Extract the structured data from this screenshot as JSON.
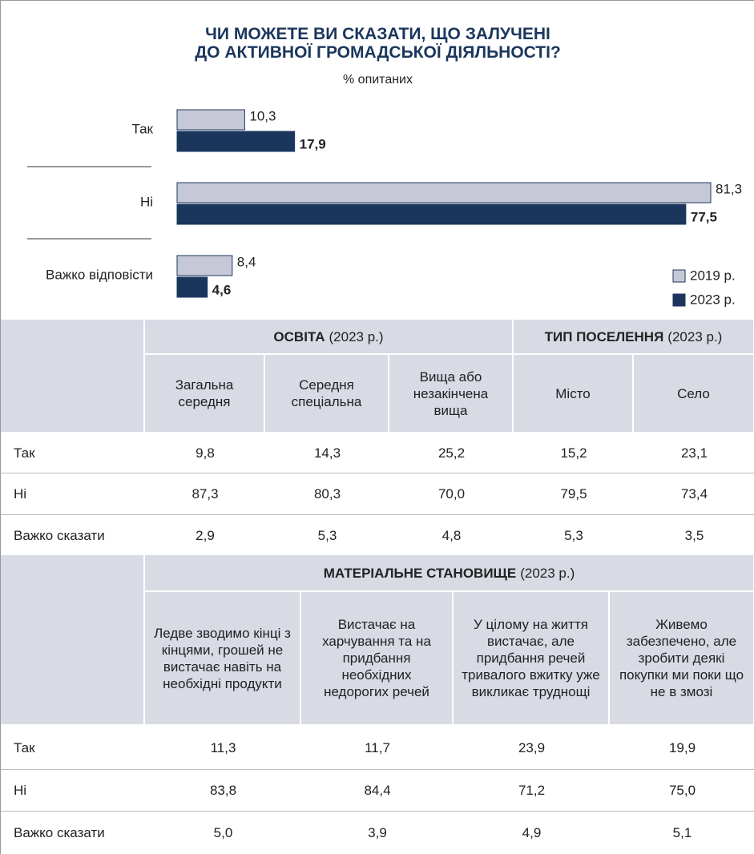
{
  "chart_data": {
    "type": "bar",
    "orientation": "horizontal",
    "title": [
      "ЧИ МОЖЕТЕ ВИ СКАЗАТИ, ЩО ЗАЛУЧЕНІ",
      "ДО АКТИВНОЇ ГРОМАДСЬКОЇ ДІЯЛЬНОСТІ?"
    ],
    "subtitle": "% опитаних",
    "categories": [
      "Так",
      "Ні",
      "Важко відповісти"
    ],
    "series": [
      {
        "name": "2019 р.",
        "color": "#c6c8d8",
        "values": [
          10.3,
          81.3,
          8.4
        ],
        "value_labels": [
          "10,3",
          "81,3",
          "8,4"
        ]
      },
      {
        "name": "2023 р.",
        "color": "#1b365d",
        "values": [
          17.9,
          77.5,
          4.6
        ],
        "value_labels": [
          "17,9",
          "77,5",
          "4,6"
        ]
      }
    ],
    "legend": "bottom-right"
  },
  "tables": [
    {
      "groups": [
        {
          "name": "ОСВІТА",
          "note": "(2023 р.)",
          "columns": [
            "Загальна середня",
            "Середня спеціальна",
            "Вища або незакінчена вища"
          ]
        },
        {
          "name": "ТИП ПОСЕЛЕННЯ",
          "note": "(2023 р.)",
          "columns": [
            "Місто",
            "Село"
          ]
        }
      ],
      "rows": [
        {
          "label": "Так",
          "values": [
            "9,8",
            "14,3",
            "25,2",
            "15,2",
            "23,1"
          ]
        },
        {
          "label": "Ні",
          "values": [
            "87,3",
            "80,3",
            "70,0",
            "79,5",
            "73,4"
          ]
        },
        {
          "label": "Важко сказати",
          "values": [
            "2,9",
            "5,3",
            "4,8",
            "5,3",
            "3,5"
          ]
        }
      ]
    },
    {
      "groups": [
        {
          "name": "МАТЕРІАЛЬНЕ СТАНОВИЩЕ",
          "note": "(2023 р.)",
          "columns": [
            "Ледве зводимо кінці з кінцями, грошей не вистачає навіть на необхідні продукти",
            "Вистачає на харчування та на придбання необхідних недорогих речей",
            "У цілому на життя вистачає, але придбання речей тривалого вжитку уже викликає труднощі",
            "Живемо забезпечено, але зробити деякі покупки ми поки що не в змозі"
          ]
        }
      ],
      "rows": [
        {
          "label": "Так",
          "values": [
            "11,3",
            "11,7",
            "23,9",
            "19,9"
          ]
        },
        {
          "label": "Ні",
          "values": [
            "83,8",
            "84,4",
            "71,2",
            "75,0"
          ]
        },
        {
          "label": "Важко сказати",
          "values": [
            "5,0",
            "3,9",
            "4,9",
            "5,1"
          ]
        }
      ]
    }
  ]
}
